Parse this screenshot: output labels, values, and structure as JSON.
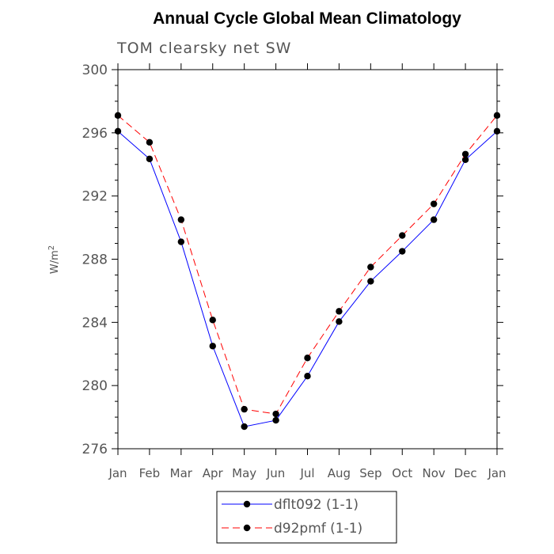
{
  "chart_data": {
    "type": "line",
    "title": "Annual Cycle Global Mean Climatology",
    "subtitle": "TOM clearsky net SW",
    "xlabel": "",
    "ylabel": "W/m",
    "ylabel_superscript": "2",
    "categories": [
      "Jan",
      "Feb",
      "Mar",
      "Apr",
      "May",
      "Jun",
      "Jul",
      "Aug",
      "Sep",
      "Oct",
      "Nov",
      "Dec",
      "Jan"
    ],
    "ylim": [
      276,
      300
    ],
    "yticks": [
      276,
      280,
      284,
      288,
      292,
      296,
      300
    ],
    "grid": false,
    "legend_position": "bottom-center",
    "series": [
      {
        "name": "dflt092 (1-1)",
        "color": "#0000ff",
        "dash": "solid",
        "marker": "filled-circle",
        "values": [
          296.1,
          294.35,
          289.1,
          282.5,
          277.4,
          277.8,
          280.6,
          284.05,
          286.6,
          288.5,
          290.5,
          294.3,
          296.1
        ]
      },
      {
        "name": "d92pmf (1-1)",
        "color": "#ff0000",
        "dash": "dashed",
        "marker": "filled-circle",
        "values": [
          297.1,
          295.4,
          290.5,
          284.15,
          278.5,
          278.2,
          281.75,
          284.7,
          287.5,
          289.5,
          291.5,
          294.65,
          297.1
        ]
      }
    ]
  }
}
